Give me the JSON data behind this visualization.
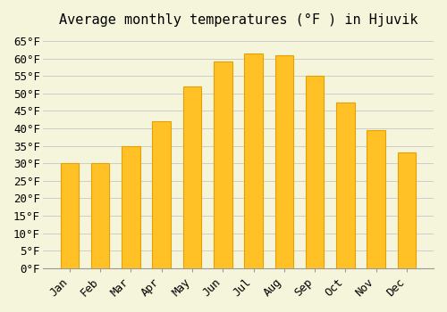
{
  "title": "Average monthly temperatures (°F ) in Hjuvik",
  "months": [
    "Jan",
    "Feb",
    "Mar",
    "Apr",
    "May",
    "Jun",
    "Jul",
    "Aug",
    "Sep",
    "Oct",
    "Nov",
    "Dec"
  ],
  "values": [
    30,
    30,
    35,
    42,
    52,
    59,
    61.5,
    61,
    55,
    47.5,
    39.5,
    33
  ],
  "bar_color": "#FFC125",
  "bar_edge_color": "#E8A000",
  "background_color": "#F5F5DC",
  "ylim": [
    0,
    67
  ],
  "yticks": [
    0,
    5,
    10,
    15,
    20,
    25,
    30,
    35,
    40,
    45,
    50,
    55,
    60,
    65
  ],
  "title_fontsize": 11,
  "tick_fontsize": 9,
  "grid_color": "#cccccc"
}
